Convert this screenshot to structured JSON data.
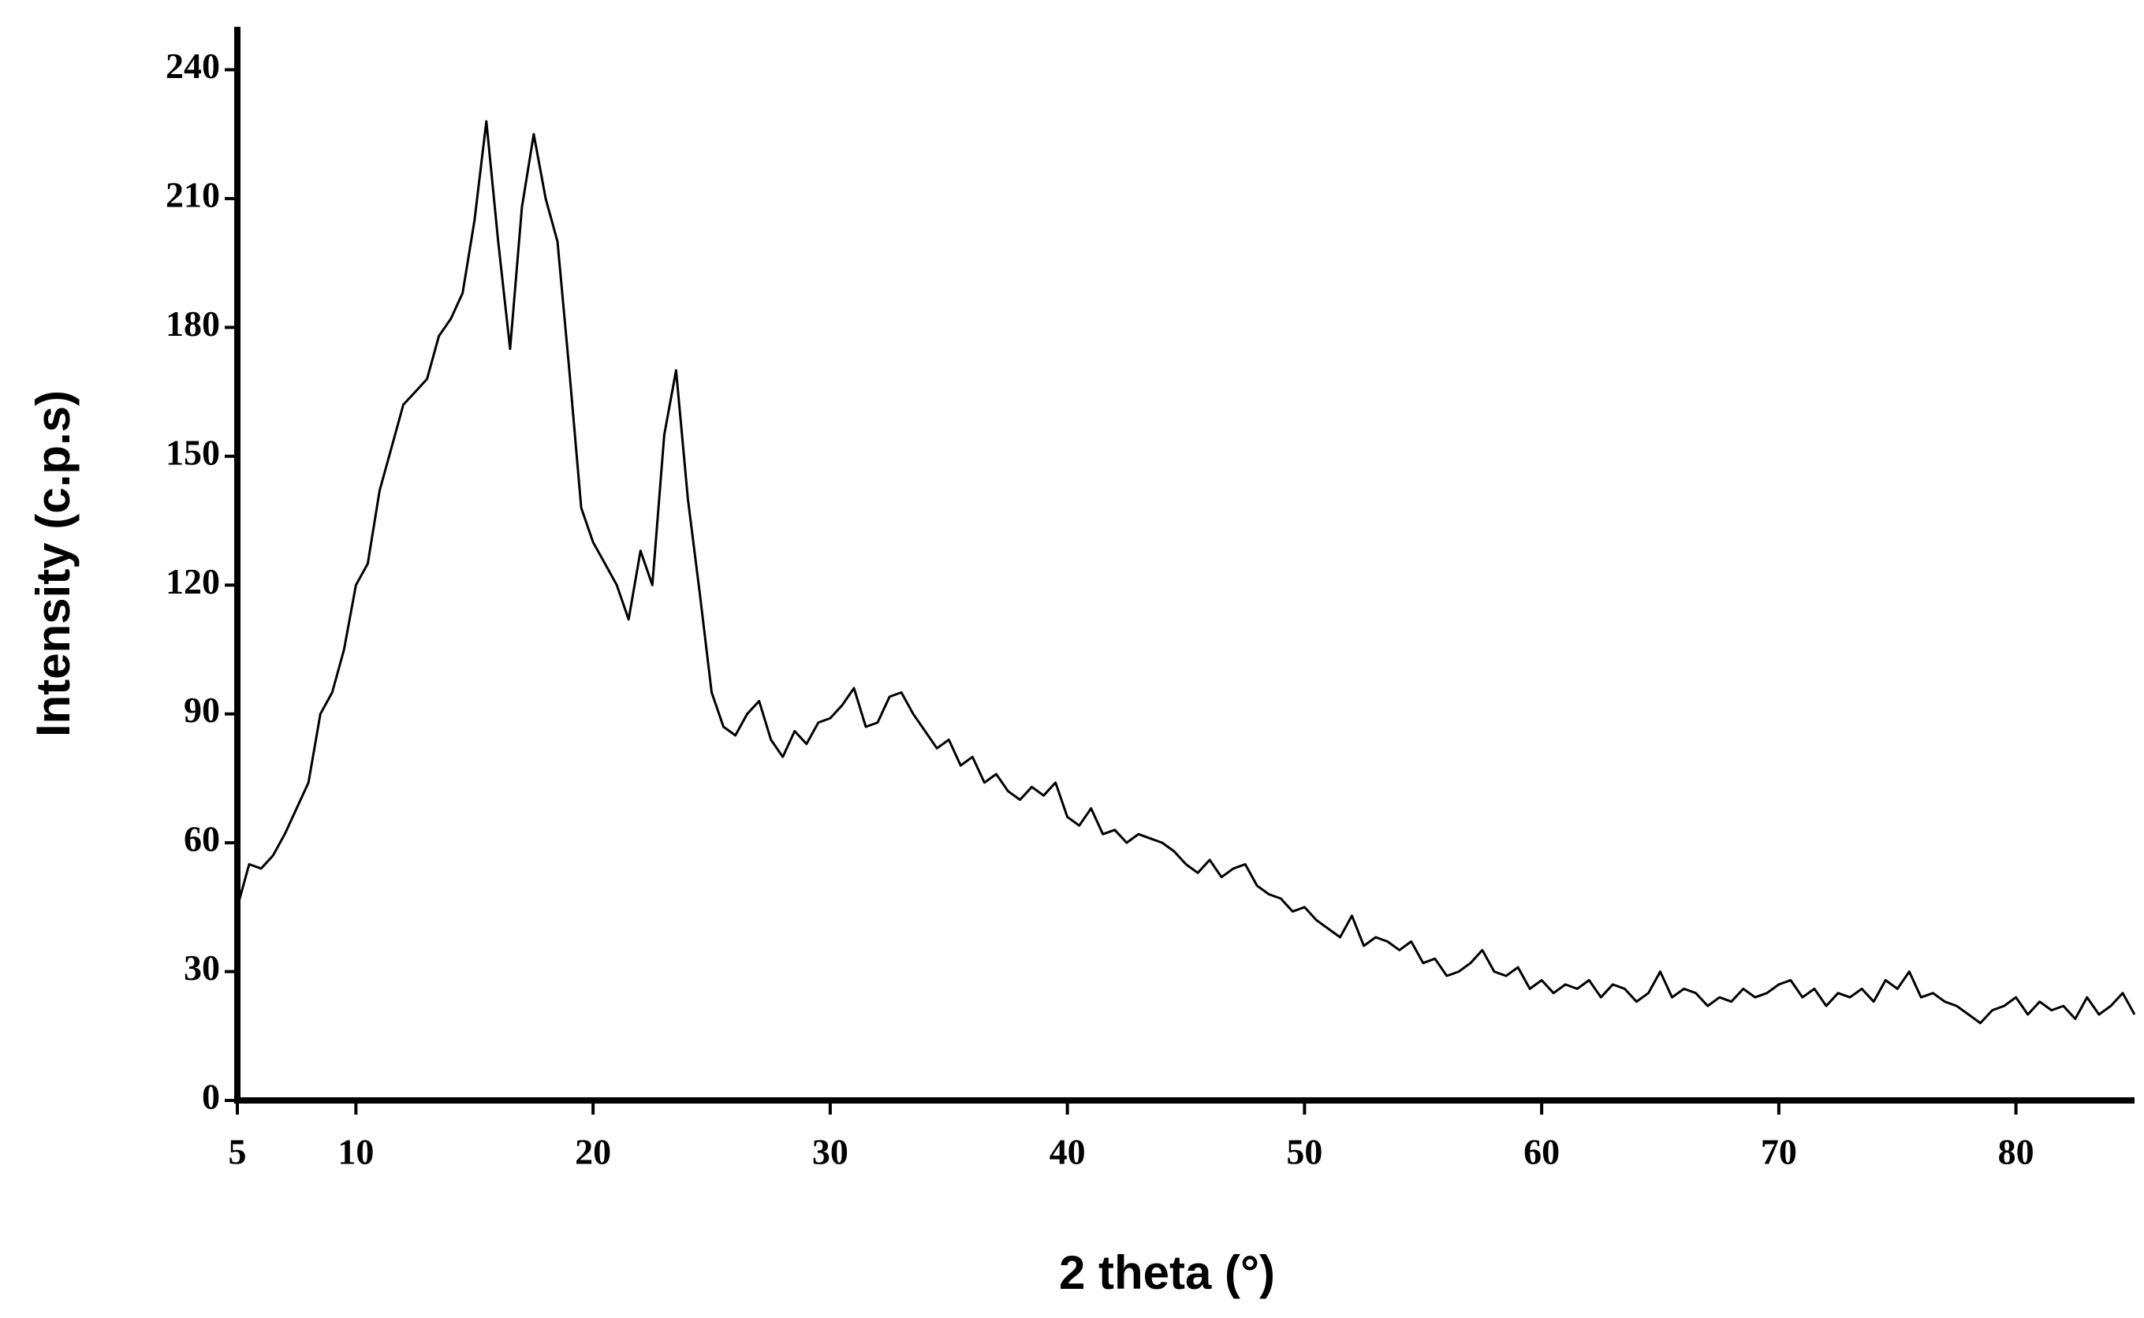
{
  "chart_data": {
    "type": "line",
    "x_label": "2 theta (°)",
    "y_label": "Intensity (c.p.s)",
    "xlim": [
      5,
      85
    ],
    "ylim": [
      0,
      250
    ],
    "xticks": [
      5,
      10,
      20,
      30,
      40,
      50,
      60,
      70,
      80
    ],
    "yticks": [
      0,
      30,
      60,
      90,
      120,
      150,
      180,
      210,
      240
    ],
    "x": [
      5,
      5.5,
      6,
      6.5,
      7,
      7.5,
      8,
      8.5,
      9,
      9.5,
      10,
      10.5,
      11,
      11.5,
      12,
      12.5,
      13,
      13.5,
      14,
      14.5,
      15,
      15.5,
      16,
      16.5,
      17,
      17.5,
      18,
      18.5,
      19,
      19.5,
      20,
      20.5,
      21,
      21.5,
      22,
      22.5,
      23,
      23.5,
      24,
      24.5,
      25,
      25.5,
      26,
      26.5,
      27,
      27.5,
      28,
      28.5,
      29,
      29.5,
      30,
      30.5,
      31,
      31.5,
      32,
      32.5,
      33,
      33.5,
      34,
      34.5,
      35,
      35.5,
      36,
      36.5,
      37,
      37.5,
      38,
      38.5,
      39,
      39.5,
      40,
      40.5,
      41,
      41.5,
      42,
      42.5,
      43,
      43.5,
      44,
      44.5,
      45,
      45.5,
      46,
      46.5,
      47,
      47.5,
      48,
      48.5,
      49,
      49.5,
      50,
      50.5,
      51,
      51.5,
      52,
      52.5,
      53,
      53.5,
      54,
      54.5,
      55,
      55.5,
      56,
      56.5,
      57,
      57.5,
      58,
      58.5,
      59,
      59.5,
      60,
      60.5,
      61,
      61.5,
      62,
      62.5,
      63,
      63.5,
      64,
      64.5,
      65,
      65.5,
      66,
      66.5,
      67,
      67.5,
      68,
      68.5,
      69,
      69.5,
      70,
      70.5,
      71,
      71.5,
      72,
      72.5,
      73,
      73.5,
      74,
      74.5,
      75,
      75.5,
      76,
      76.5,
      77,
      77.5,
      78,
      78.5,
      79,
      79.5,
      80,
      80.5,
      81,
      81.5,
      82,
      82.5,
      83,
      83.5,
      84,
      84.5,
      85
    ],
    "series": [
      {
        "color": "#000000",
        "values": [
          45,
          55,
          54,
          57,
          62,
          68,
          74,
          90,
          95,
          105,
          120,
          125,
          142,
          152,
          162,
          165,
          168,
          178,
          182,
          188,
          205,
          228,
          200,
          175,
          208,
          225,
          210,
          200,
          170,
          138,
          130,
          125,
          120,
          112,
          128,
          120,
          155,
          170,
          140,
          118,
          95,
          87,
          85,
          90,
          93,
          84,
          80,
          86,
          83,
          88,
          89,
          92,
          96,
          87,
          88,
          94,
          95,
          90,
          86,
          82,
          84,
          78,
          80,
          74,
          76,
          72,
          70,
          73,
          71,
          74,
          66,
          64,
          68,
          62,
          63,
          60,
          62,
          61,
          60,
          58,
          55,
          53,
          56,
          52,
          54,
          55,
          50,
          48,
          47,
          44,
          45,
          42,
          40,
          38,
          43,
          36,
          38,
          37,
          35,
          37,
          32,
          33,
          29,
          30,
          32,
          35,
          30,
          29,
          31,
          26,
          28,
          25,
          27,
          26,
          28,
          24,
          27,
          26,
          23,
          25,
          30,
          24,
          26,
          25,
          22,
          24,
          23,
          26,
          24,
          25,
          27,
          28,
          24,
          26,
          22,
          25,
          24,
          26,
          23,
          28,
          26,
          30,
          24,
          25,
          23,
          22,
          20,
          18,
          21,
          22,
          24,
          20,
          23,
          21,
          22,
          19,
          24,
          20,
          22,
          25,
          20
        ]
      }
    ]
  }
}
